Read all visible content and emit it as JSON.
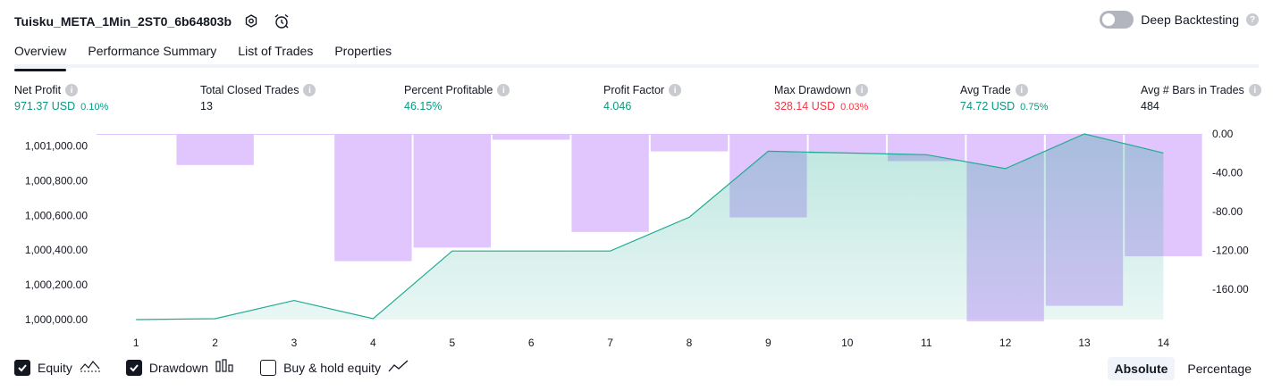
{
  "header": {
    "title": "Tuisku_META_1Min_2ST0_6b64803b",
    "settings_icon": "gear-icon",
    "alert_icon": "alarm-clock-icon",
    "deep_backtesting_label": "Deep Backtesting",
    "deep_backtesting_enabled": false
  },
  "tabs": [
    {
      "label": "Overview",
      "active": true
    },
    {
      "label": "Performance Summary",
      "active": false
    },
    {
      "label": "List of Trades",
      "active": false
    },
    {
      "label": "Properties",
      "active": false
    }
  ],
  "metrics": {
    "net_profit": {
      "label": "Net Profit",
      "value": "971.37 USD",
      "pct": "0.10%"
    },
    "total_closed_trades": {
      "label": "Total Closed Trades",
      "value": "13"
    },
    "percent_profitable": {
      "label": "Percent Profitable",
      "value": "46.15%"
    },
    "profit_factor": {
      "label": "Profit Factor",
      "value": "4.046"
    },
    "max_drawdown": {
      "label": "Max Drawdown",
      "value": "328.14 USD",
      "pct": "0.03%"
    },
    "avg_trade": {
      "label": "Avg Trade",
      "value": "74.72 USD",
      "pct": "0.75%"
    },
    "avg_bars": {
      "label": "Avg # Bars in Trades",
      "value": "484"
    }
  },
  "chart_data": {
    "type": "area",
    "x": [
      1,
      2,
      3,
      4,
      5,
      6,
      7,
      8,
      9,
      10,
      11,
      12,
      13,
      14
    ],
    "left_axis": {
      "ticks": [
        "1,001,000.00",
        "1,000,800.00",
        "1,000,600.00",
        "1,000,400.00",
        "1,000,200.00",
        "1,000,000.00"
      ],
      "ylim": [
        1000000,
        1001070
      ]
    },
    "right_axis": {
      "ticks": [
        "0.00",
        "-40.00",
        "-80.00",
        "-120.00",
        "-160.00"
      ],
      "ylim": [
        -193,
        0
      ]
    },
    "series": [
      {
        "name": "Equity",
        "kind": "area",
        "axis": "left",
        "color": "#22ab94",
        "values": [
          1000000,
          1000005,
          1000110,
          1000005,
          1000395,
          1000395,
          1000395,
          1000590,
          1000970,
          1000960,
          1000950,
          1000870,
          1001070,
          1000960
        ]
      },
      {
        "name": "Drawdown",
        "kind": "bar",
        "axis": "right",
        "color": "#e1c6fd",
        "values": [
          -1,
          -32,
          -1,
          -131,
          -117,
          -6,
          -101,
          -18,
          -86,
          -20,
          -28,
          -193,
          -177,
          -126
        ]
      }
    ]
  },
  "footer": {
    "legend": [
      {
        "label": "Equity",
        "checked": true,
        "icon": "equity-line-icon"
      },
      {
        "label": "Drawdown",
        "checked": true,
        "icon": "drawdown-bars-icon"
      },
      {
        "label": "Buy & hold equity",
        "checked": false,
        "icon": "buy-hold-line-icon"
      }
    ],
    "modes": [
      {
        "label": "Absolute",
        "active": true
      },
      {
        "label": "Percentage",
        "active": false
      }
    ]
  }
}
